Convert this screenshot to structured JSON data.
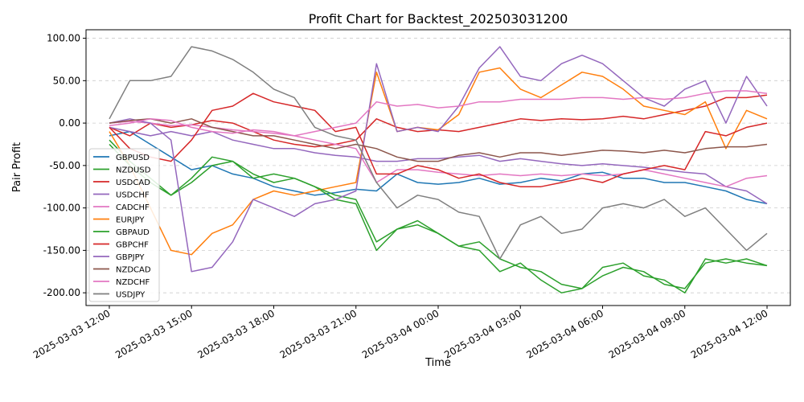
{
  "chart_data": {
    "type": "line",
    "title": "Profit Chart for Backtest_202503031200",
    "xlabel": "Time",
    "ylabel": "Pair Profit",
    "ylim": [
      -215,
      110
    ],
    "xlim_hours": [
      -0.85,
      24.85
    ],
    "grid": "y-dashed",
    "legend_position": "center-left",
    "x_ticks": [
      "2025-03-03 12:00",
      "2025-03-03 15:00",
      "2025-03-03 18:00",
      "2025-03-03 21:00",
      "2025-03-04 00:00",
      "2025-03-04 03:00",
      "2025-03-04 06:00",
      "2025-03-04 09:00",
      "2025-03-04 12:00"
    ],
    "y_ticks": [
      "100.00",
      "50.00",
      "0.00",
      "-50.00",
      "-100.00",
      "-150.00",
      "-200.00"
    ],
    "y_tick_values": [
      100,
      50,
      0,
      -50,
      -100,
      -150,
      -200
    ],
    "x_hours": [
      0,
      0.75,
      1.5,
      2.25,
      3,
      3.75,
      4.5,
      5.25,
      6,
      6.75,
      7.5,
      8.25,
      9,
      9.75,
      10.5,
      11.25,
      12,
      12.75,
      13.5,
      14.25,
      15,
      15.75,
      16.5,
      17.25,
      18,
      18.75,
      19.5,
      20.25,
      21,
      21.75,
      22.5,
      23.25,
      24
    ],
    "series": [
      {
        "name": "GBPUSD",
        "color": "#1f77b4",
        "values": [
          -15,
          -10,
          -25,
          -40,
          -55,
          -50,
          -60,
          -65,
          -75,
          -80,
          -85,
          -82,
          -78,
          -80,
          -60,
          -70,
          -72,
          -70,
          -65,
          -72,
          -70,
          -65,
          -68,
          -60,
          -58,
          -65,
          -65,
          -70,
          -70,
          -75,
          -80,
          -90,
          -95
        ]
      },
      {
        "name": "NZDUSD",
        "color": "#2ca02c",
        "values": [
          -20,
          -45,
          -65,
          -85,
          -65,
          -40,
          -45,
          -65,
          -60,
          -65,
          -75,
          -90,
          -95,
          -150,
          -125,
          -120,
          -130,
          -145,
          -150,
          -175,
          -165,
          -185,
          -200,
          -195,
          -170,
          -165,
          -180,
          -185,
          -200,
          -160,
          -165,
          -160,
          -168
        ]
      },
      {
        "name": "USDCAD",
        "color": "#d62728",
        "values": [
          -5,
          -15,
          0,
          -5,
          -2,
          3,
          0,
          -10,
          -20,
          -25,
          -28,
          -25,
          -20,
          5,
          -5,
          -10,
          -8,
          -10,
          -5,
          0,
          5,
          3,
          5,
          4,
          5,
          8,
          5,
          10,
          15,
          20,
          30,
          30,
          33
        ]
      },
      {
        "name": "USDCHF",
        "color": "#9467bd",
        "values": [
          -5,
          -10,
          -15,
          -10,
          -15,
          -10,
          -20,
          -25,
          -30,
          -30,
          -35,
          -38,
          -40,
          -45,
          -45,
          -42,
          -42,
          -40,
          -38,
          -45,
          -42,
          -45,
          -48,
          -50,
          -48,
          -50,
          -52,
          -55,
          -58,
          -60,
          -75,
          -80,
          -95
        ]
      },
      {
        "name": "CADCHF",
        "color": "#e377c2",
        "values": [
          0,
          2,
          0,
          -3,
          -2,
          -5,
          -8,
          -10,
          -12,
          -15,
          -20,
          -25,
          -30,
          -70,
          -55,
          -55,
          -58,
          -60,
          -62,
          -60,
          -62,
          -60,
          -62,
          -60,
          -62,
          -60,
          -55,
          -60,
          -65,
          -70,
          -75,
          -65,
          -62
        ]
      },
      {
        "name": "EURJPY",
        "color": "#ff7f0e",
        "values": [
          -10,
          -50,
          -100,
          -150,
          -155,
          -130,
          -120,
          -90,
          -80,
          -85,
          -80,
          -75,
          -70,
          60,
          -10,
          -5,
          -8,
          10,
          60,
          65,
          40,
          30,
          45,
          60,
          55,
          40,
          20,
          15,
          10,
          25,
          -30,
          15,
          5
        ]
      },
      {
        "name": "GBPAUD",
        "color": "#2ca02c",
        "values": [
          -25,
          -50,
          -70,
          -85,
          -70,
          -50,
          -45,
          -60,
          -70,
          -65,
          -75,
          -85,
          -90,
          -140,
          -125,
          -115,
          -130,
          -145,
          -140,
          -160,
          -170,
          -175,
          -190,
          -195,
          -180,
          -170,
          -175,
          -190,
          -195,
          -165,
          -160,
          -165,
          -168
        ]
      },
      {
        "name": "GBPCHF",
        "color": "#d62728",
        "values": [
          -5,
          -30,
          -40,
          -45,
          -20,
          15,
          20,
          35,
          25,
          20,
          15,
          -10,
          -5,
          -60,
          -60,
          -50,
          -55,
          -65,
          -60,
          -70,
          -75,
          -75,
          -70,
          -65,
          -70,
          -60,
          -55,
          -50,
          -55,
          -10,
          -15,
          -5,
          0
        ]
      },
      {
        "name": "GBPJPY",
        "color": "#9467bd",
        "values": [
          0,
          5,
          0,
          -20,
          -175,
          -170,
          -140,
          -90,
          -100,
          -110,
          -95,
          -90,
          -80,
          70,
          -10,
          -5,
          -10,
          20,
          65,
          90,
          55,
          50,
          70,
          80,
          70,
          50,
          30,
          20,
          40,
          50,
          0,
          55,
          20
        ]
      },
      {
        "name": "NZDCAD",
        "color": "#8c564b",
        "values": [
          0,
          3,
          5,
          0,
          5,
          -5,
          -10,
          -15,
          -15,
          -20,
          -25,
          -30,
          -25,
          -30,
          -40,
          -45,
          -45,
          -38,
          -35,
          -40,
          -35,
          -35,
          -38,
          -35,
          -32,
          -33,
          -35,
          -32,
          -35,
          -30,
          -28,
          -28,
          -25
        ]
      },
      {
        "name": "NZDCHF",
        "color": "#e377c2",
        "values": [
          -3,
          0,
          5,
          3,
          -5,
          -10,
          -12,
          -8,
          -10,
          -15,
          -10,
          -5,
          0,
          25,
          20,
          22,
          18,
          20,
          25,
          25,
          28,
          28,
          28,
          30,
          30,
          28,
          30,
          28,
          30,
          35,
          38,
          38,
          35
        ]
      },
      {
        "name": "USDJPY",
        "color": "#7f7f7f",
        "values": [
          5,
          50,
          50,
          55,
          90,
          85,
          75,
          60,
          40,
          30,
          -5,
          -15,
          -20,
          -70,
          -100,
          -85,
          -90,
          -105,
          -110,
          -160,
          -120,
          -110,
          -130,
          -125,
          -100,
          -95,
          -100,
          -90,
          -110,
          -100,
          -125,
          -150,
          -130
        ]
      }
    ]
  }
}
